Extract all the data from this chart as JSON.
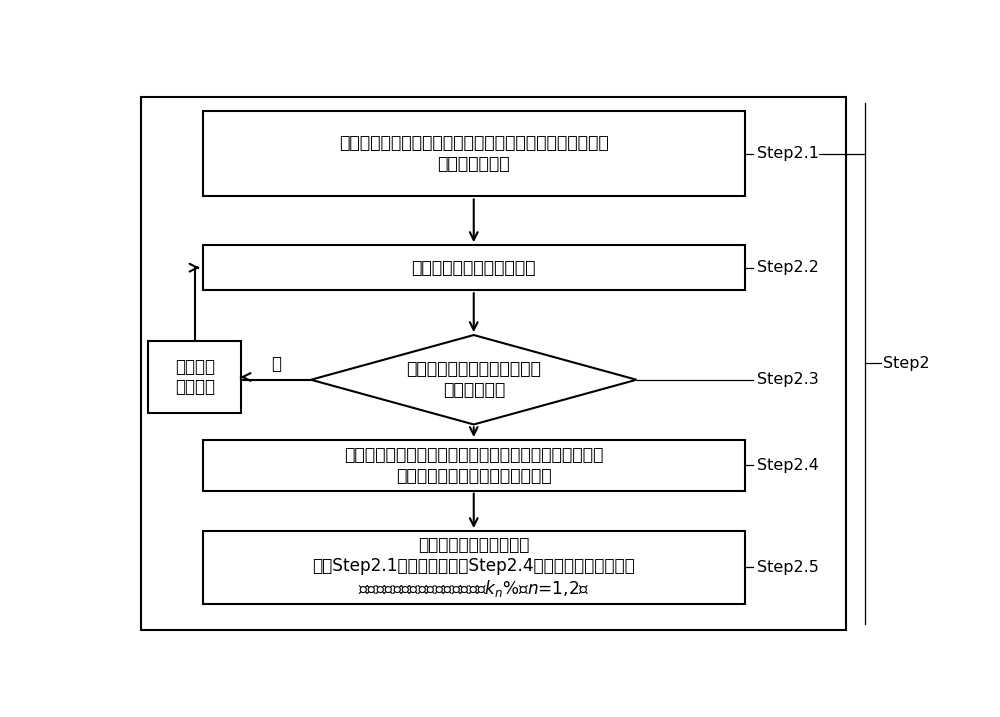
{
  "bg_color": "#ffffff",
  "border_color": "#000000",
  "box_color": "#ffffff",
  "text_color": "#000000",
  "step21_text": "利用波速除以二倍的线路全长估算线路全长所对应的频差，\n记录全长频差；",
  "step22_text": "计算单端测距信号的频谱；",
  "step23_text": "分别判断各频段信号的频谱分\n布是否等间隔",
  "step24_text": "提取单端频谱的谱峰位置的频率值，对相邻两个频率值作\n差，得到单端频谱所对应的频差；",
  "step25_text": "改变至少三次时窗长度，\n计算Step2.1所得全长频差与Step2.4所得的频差之比，得到\n稳定存在的至多两个测距估计结果$k_n$%，$n$=1,2；",
  "sidebox_text": "自动调整\n时窗长度",
  "no_text": "否",
  "step21_label": "Step2.1",
  "step22_label": "Step2.2",
  "step23_label": "Step2.3",
  "step24_label": "Step2.4",
  "step25_label": "Step2.5",
  "step2_label": "Step2"
}
